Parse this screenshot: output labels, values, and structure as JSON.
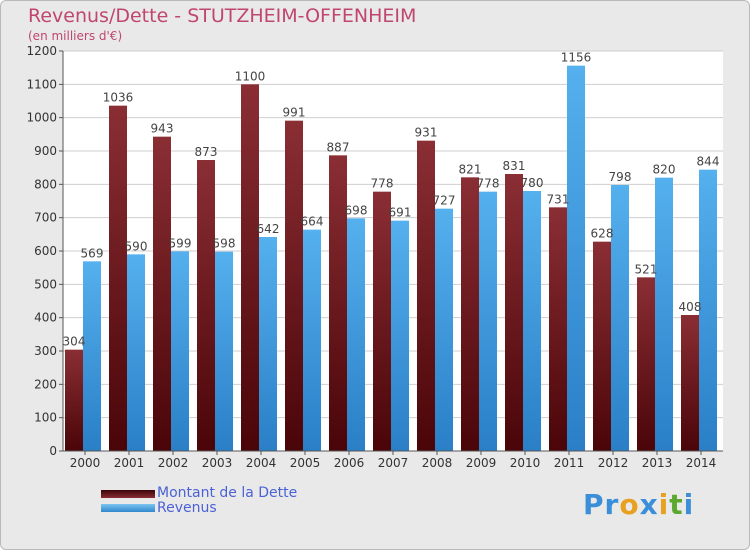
{
  "title": "Revenus/Dette - STUTZHEIM-OFFENHEIM",
  "subtitle": "(en milliers d'€)",
  "chart_data": {
    "type": "bar",
    "title": "Revenus/Dette - STUTZHEIM-OFFENHEIM",
    "ylabel": "(en milliers d'€)",
    "xlabel": "",
    "ylim": [
      0,
      1200
    ],
    "yticks": [
      0,
      100,
      200,
      300,
      400,
      500,
      600,
      700,
      800,
      900,
      1000,
      1100,
      1200
    ],
    "categories": [
      "2000",
      "2001",
      "2002",
      "2003",
      "2004",
      "2005",
      "2006",
      "2007",
      "2008",
      "2009",
      "2010",
      "2011",
      "2012",
      "2013",
      "2014"
    ],
    "series": [
      {
        "name": "Montant de la Dette",
        "color": "#7a2227",
        "values": [
          304,
          1036,
          943,
          873,
          1100,
          991,
          887,
          778,
          931,
          821,
          831,
          731,
          628,
          521,
          408
        ]
      },
      {
        "name": "Revenus",
        "color": "#3f9fe3",
        "values": [
          569,
          590,
          599,
          598,
          642,
          664,
          698,
          691,
          727,
          778,
          780,
          1156,
          798,
          820,
          844
        ]
      }
    ],
    "grid": true,
    "legend": "bottom-left"
  },
  "legend": {
    "items": [
      {
        "label": "Montant de la Dette"
      },
      {
        "label": "Revenus"
      }
    ]
  },
  "logo": {
    "letters": [
      {
        "char": "P",
        "color": "#3a8fd8"
      },
      {
        "char": "r",
        "color": "#3a8fd8"
      },
      {
        "char": "o",
        "color": "#e8a020"
      },
      {
        "char": "x",
        "color": "#3a8fd8"
      },
      {
        "char": "i",
        "color": "#e8a020"
      },
      {
        "char": "t",
        "color": "#5aa830"
      },
      {
        "char": "i",
        "color": "#3a8fd8"
      }
    ]
  }
}
